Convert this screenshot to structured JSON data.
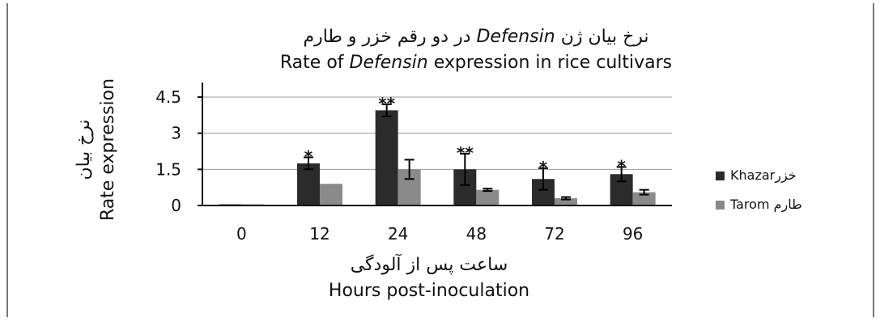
{
  "chart_data": {
    "type": "bar",
    "title_fa": "نرخ بیان ژن Defensin در دو رقم خزر و طارم",
    "title_fa_parts": [
      "نرخ بیان ژن ",
      "Defensin",
      " در دو رقم خزر و طارم"
    ],
    "title_en_parts": [
      "Rate of ",
      "Defensin",
      " expression in rice cultivars"
    ],
    "xlabel_fa": "ساعت پس از آلودگی",
    "xlabel": "Hours post-inoculation",
    "ylabel_fa": "نرخ بیان",
    "ylabel": "Rate expression",
    "categories": [
      "0",
      "12",
      "24",
      "48",
      "72",
      "96"
    ],
    "ylim": [
      0,
      4.5
    ],
    "yticks": [
      0,
      1.5,
      3,
      4.5
    ],
    "ytick_labels": [
      "0",
      "1.5",
      "3",
      "4.5"
    ],
    "grid": true,
    "legend_position": "right",
    "series": [
      {
        "name": "Khazarخزر",
        "color": "#2b2b2b",
        "values": [
          0.05,
          1.75,
          3.95,
          1.5,
          1.1,
          1.3
        ],
        "errors": [
          0.0,
          0.25,
          0.25,
          0.65,
          0.45,
          0.3
        ],
        "annotations": [
          "",
          "*",
          "**",
          "**",
          "*",
          "*"
        ]
      },
      {
        "name": "Tarom   طارم",
        "color": "#8a8a8a",
        "values": [
          0.05,
          0.9,
          1.5,
          0.65,
          0.3,
          0.55
        ],
        "errors": [
          0.0,
          0.0,
          0.4,
          0.05,
          0.05,
          0.1
        ],
        "annotations": [
          "",
          "",
          "",
          "",
          "",
          ""
        ]
      }
    ]
  }
}
